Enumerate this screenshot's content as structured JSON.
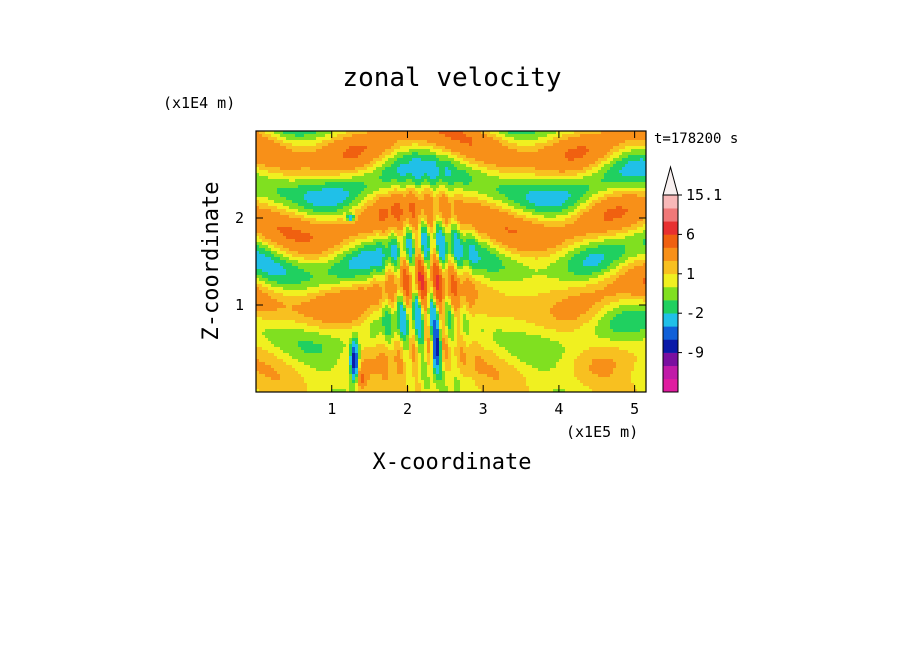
{
  "chart_data": {
    "type": "heatmap",
    "title": "zonal velocity",
    "xlabel": "X-coordinate",
    "ylabel": "Z-coordinate",
    "x_unit": "(x1E5 m)",
    "y_unit": "(x1E4 m)",
    "time_label": "t=178200 s",
    "xlim": [
      0,
      5.15
    ],
    "ylim": [
      0,
      3.0
    ],
    "x_ticks": [
      1,
      2,
      3,
      4,
      5
    ],
    "y_ticks": [
      1,
      2
    ],
    "colorbar": {
      "levels": [
        -15,
        -12,
        -9,
        -6,
        -4,
        -2,
        -1,
        0,
        1,
        2,
        4,
        6,
        9,
        12,
        15.1
      ],
      "tick_labels": [
        "15.1",
        "6",
        "1",
        "-2",
        "-9"
      ],
      "tick_values": [
        15.1,
        6,
        1,
        -2,
        -9
      ],
      "colors": [
        "#e01ca0",
        "#c01aa8",
        "#7a0fa0",
        "#0a1aa8",
        "#1060d8",
        "#20c0e8",
        "#20d060",
        "#80e020",
        "#f0f020",
        "#f8c020",
        "#f89018",
        "#f06010",
        "#e83030",
        "#f07878",
        "#f8b8b8",
        "#f8f0f0"
      ],
      "extend": "max"
    },
    "grid": false
  }
}
